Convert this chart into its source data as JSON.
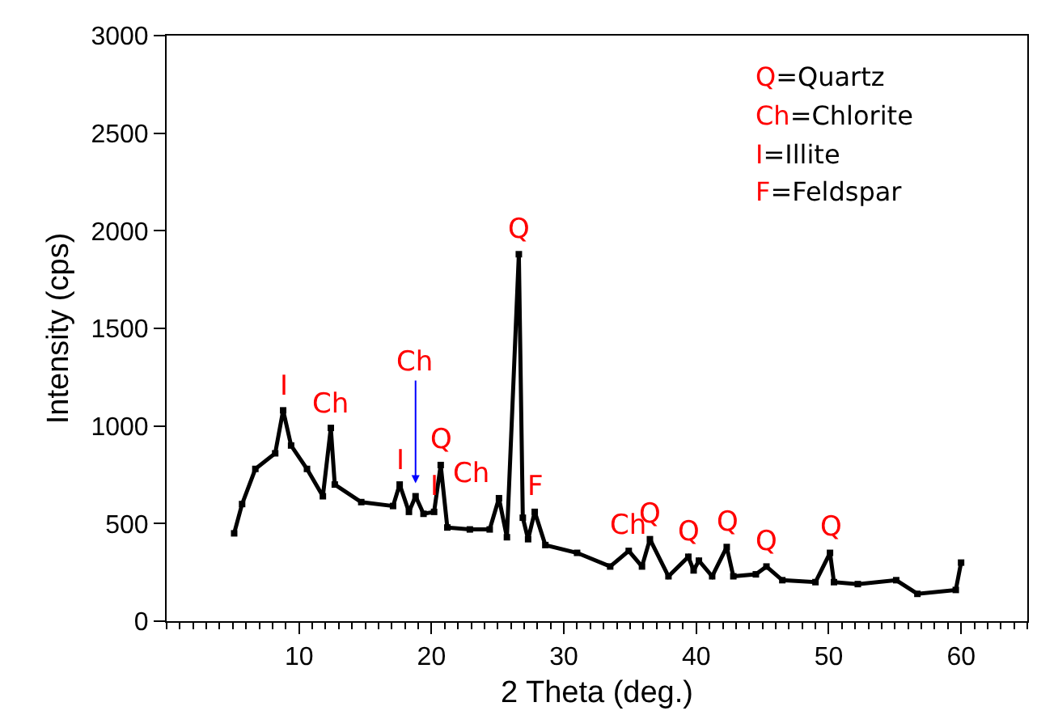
{
  "chart_data": {
    "type": "line",
    "xlabel": "2 Theta (deg.)",
    "ylabel": "Intensity (cps)",
    "xlim": [
      0,
      65
    ],
    "xticks": [
      10,
      20,
      30,
      40,
      50,
      60
    ],
    "ylim": [
      0,
      3000
    ],
    "yticks": [
      0,
      500,
      1000,
      1500,
      2000,
      2500,
      3000
    ],
    "marker": "square",
    "series": [
      {
        "color": "#000000",
        "x": [
          5.1,
          5.7,
          6.7,
          8.2,
          8.8,
          9.4,
          10.6,
          11.8,
          12.4,
          12.7,
          14.7,
          17.1,
          17.6,
          18.3,
          18.8,
          19.4,
          20.2,
          20.7,
          21.2,
          22.9,
          24.4,
          25.1,
          25.7,
          26.6,
          26.9,
          27.3,
          27.8,
          28.6,
          31.0,
          33.5,
          34.9,
          35.9,
          36.5,
          37.9,
          39.4,
          39.8,
          40.2,
          41.2,
          42.3,
          42.8,
          44.5,
          45.3,
          46.5,
          49.0,
          50.1,
          50.4,
          52.2,
          55.1,
          56.7,
          59.6,
          60.0
        ],
        "values": [
          450,
          600,
          780,
          860,
          1080,
          900,
          780,
          640,
          990,
          700,
          610,
          590,
          700,
          560,
          640,
          550,
          560,
          800,
          480,
          470,
          470,
          630,
          430,
          1880,
          530,
          420,
          560,
          390,
          350,
          280,
          360,
          280,
          420,
          230,
          330,
          260,
          310,
          230,
          380,
          230,
          240,
          280,
          210,
          200,
          350,
          200,
          190,
          210,
          140,
          160,
          300
        ]
      }
    ],
    "annotations": [
      {
        "text": "I",
        "x": 8.8,
        "y": 1080
      },
      {
        "text": "Ch",
        "x": 12.4,
        "y": 990
      },
      {
        "text": "I",
        "x": 17.6,
        "y": 700
      },
      {
        "text": "Ch",
        "x": 18.8,
        "y": 640
      },
      {
        "text": "I",
        "x": 20.2,
        "y": 560
      },
      {
        "text": "Q",
        "x": 20.7,
        "y": 805
      },
      {
        "text": "Ch",
        "x": 25.1,
        "y": 630
      },
      {
        "text": "Q",
        "x": 26.6,
        "y": 1880
      },
      {
        "text": "F",
        "x": 27.8,
        "y": 560
      },
      {
        "text": "Ch",
        "x": 34.9,
        "y": 365
      },
      {
        "text": "Q",
        "x": 36.5,
        "y": 420
      },
      {
        "text": "Q",
        "x": 39.4,
        "y": 335
      },
      {
        "text": "Q",
        "x": 42.3,
        "y": 380
      },
      {
        "text": "Q",
        "x": 45.3,
        "y": 280
      },
      {
        "text": "Q",
        "x": 50.1,
        "y": 355
      },
      "Q=Quartz",
      "Ch=Chlorite",
      "I=Illite",
      "F=Feldspar"
    ]
  }
}
